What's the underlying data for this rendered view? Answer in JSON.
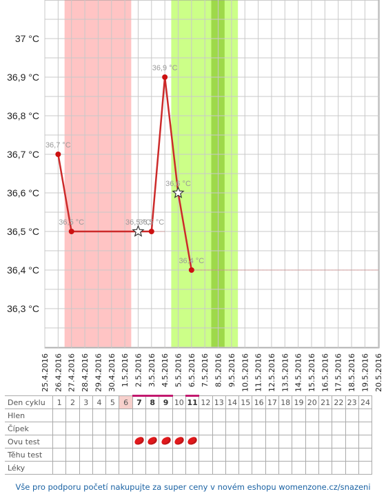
{
  "chart_data": {
    "type": "line",
    "dates": [
      "25.4.2016",
      "26.4.2016",
      "27.4.2016",
      "28.4.2016",
      "29.4.2016",
      "30.4.2016",
      "1.5.2016",
      "2.5.2016",
      "3.5.2016",
      "4.5.2016",
      "5.5.2016",
      "6.5.2016",
      "7.5.2016",
      "8.5.2016",
      "9.5.2016",
      "10.5.2016",
      "11.5.2016",
      "12.5.2016",
      "13.5.2016",
      "14.5.2016",
      "15.5.2016",
      "16.5.2016",
      "17.5.2016",
      "18.5.2016",
      "19.5.2016",
      "20.5.2016"
    ],
    "y_ticks": [
      "36,3 °C",
      "36,4 °C",
      "36,5 °C",
      "36,6 °C",
      "36,7 °C",
      "36,8 °C",
      "36,9 °C",
      "37 °C"
    ],
    "ylim": [
      36.2,
      37.1
    ],
    "series": [
      {
        "points": [
          {
            "x": "26.4.2016",
            "y": 36.7,
            "label": "36,7 °C",
            "marker": "dot"
          },
          {
            "x": "27.4.2016",
            "y": 36.5,
            "label": "36,5 °C",
            "marker": "dot"
          },
          {
            "x": "2.5.2016",
            "y": 36.5,
            "label": "36,5 °C",
            "marker": "star"
          },
          {
            "x": "3.5.2016",
            "y": 36.5,
            "label": "36,5 °C",
            "marker": "dot"
          },
          {
            "x": "4.5.2016",
            "y": 36.9,
            "label": "36,9 °C",
            "marker": "dot"
          },
          {
            "x": "5.5.2016",
            "y": 36.6,
            "label": "36,6 °C",
            "marker": "star"
          },
          {
            "x": "6.5.2016",
            "y": 36.4,
            "label": "36,4 °C",
            "marker": "dot"
          }
        ]
      }
    ],
    "cover_lines": [
      {
        "from": "27.4.2016",
        "to": "4.5.2016",
        "y": 36.5
      },
      {
        "from": "6.5.2016",
        "to": "20.5.2016",
        "y": 36.4
      }
    ],
    "bands": [
      {
        "from": "26.4.2016",
        "to": "1.5.2016",
        "color": "#ffc4c4"
      },
      {
        "from": "4.5.2016",
        "to": "9.5.2016",
        "color": "#ccff88"
      },
      {
        "from": "7.5.2016",
        "to": "8.5.2016",
        "color": "#9ed94a"
      }
    ],
    "colors": {
      "line": "#cc2a2a",
      "dot": "#cc1111",
      "grid": "#c8c8c8",
      "cover": "#cc6666"
    }
  },
  "table": {
    "rows": [
      "Den cyklu",
      "Hlen",
      "Čípek",
      "Ovu test",
      "Těhu test",
      "Léky"
    ],
    "days": [
      "1",
      "2",
      "3",
      "4",
      "5",
      "6",
      "7",
      "8",
      "9",
      "10",
      "11",
      "12",
      "13",
      "14",
      "15",
      "16",
      "17",
      "18",
      "19",
      "20",
      "21",
      "22",
      "23",
      "24"
    ],
    "ovu_test_days": [
      "7",
      "8",
      "9",
      "10",
      "11"
    ]
  },
  "footer": "Vše pro podporu početí nakupujte za super ceny v novém eshopu womenzone.cz/snazeni"
}
